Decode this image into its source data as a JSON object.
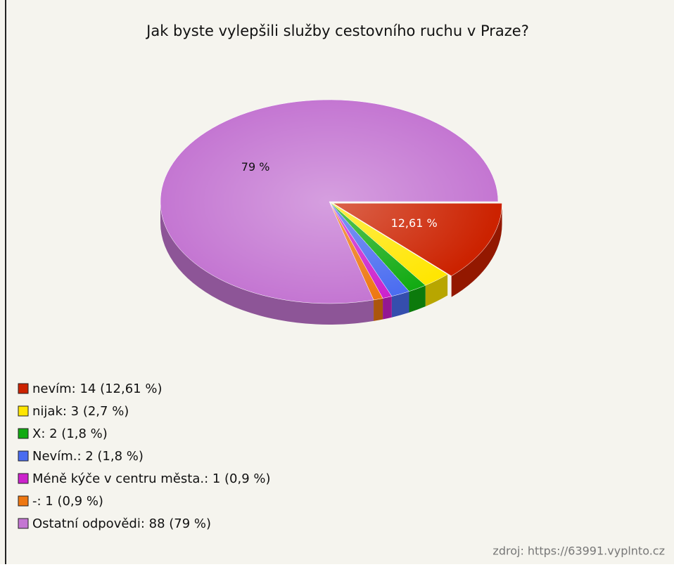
{
  "chart_data": {
    "type": "pie",
    "title": "Jak byste vylepšili služby cestovního ruchu v Praze?",
    "categories": [
      "nevím: 14 (12,61 %)",
      "nijak: 3 (2,7 %)",
      "X: 2 (1,8 %)",
      "Nevím.: 2 (1,8 %)",
      "Méně kýče v centru města.: 1 (0,9 %)",
      "-: 1 (0,9 %)",
      "Ostatní odpovědi: 88 (79 %)"
    ],
    "values": [
      12.61,
      2.7,
      1.8,
      1.8,
      0.9,
      0.9,
      79
    ],
    "value_labels": [
      "12,61 %",
      null,
      null,
      null,
      null,
      null,
      "79 %"
    ],
    "colors": [
      "#cc2200",
      "#ffe600",
      "#11aa11",
      "#4a6cf0",
      "#cc22cc",
      "#ee7711",
      "#c476d2"
    ],
    "source": "zdroj: https://63991.vyplnto.cz"
  }
}
